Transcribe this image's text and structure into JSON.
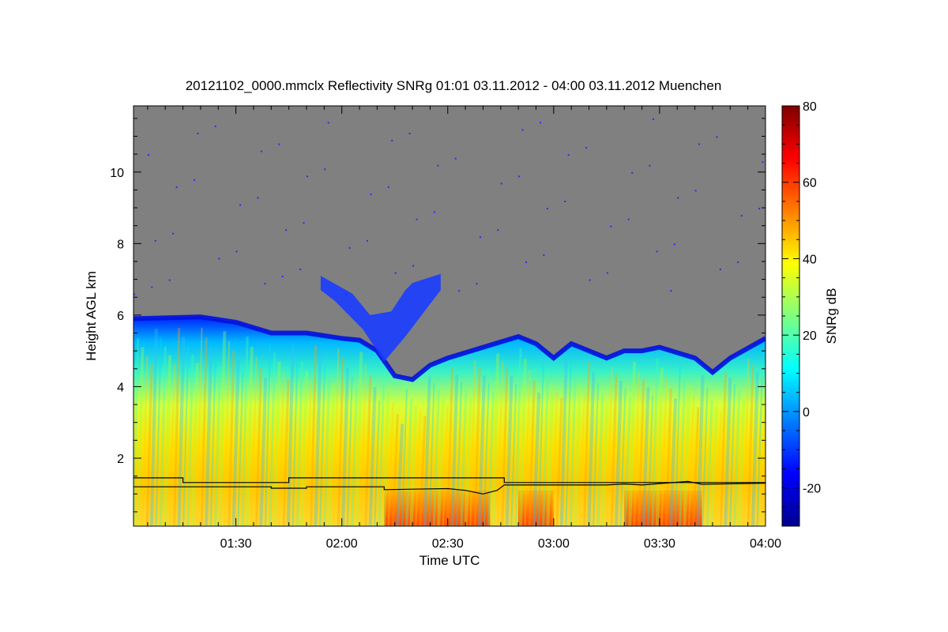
{
  "chart_data": {
    "type": "heatmap",
    "title": "20121102_0000.mmclx Reflectivity SNRg   01:01 03.11.2012 - 04:00 03.11.2012 Muenchen",
    "xlabel": "Time UTC",
    "ylabel": "Height AGL km",
    "xlim": [
      "01:01",
      "04:00"
    ],
    "xticks": [
      "01:30",
      "02:00",
      "02:30",
      "03:00",
      "03:30",
      "04:00"
    ],
    "ylim": [
      0.1,
      11.85
    ],
    "yticks": [
      2,
      4,
      6,
      8,
      10
    ],
    "colorbar": {
      "label": "SNRg dB",
      "range": [
        -30,
        80
      ],
      "ticks": [
        -20,
        0,
        20,
        40,
        60,
        80
      ],
      "colormap": "jet",
      "colors": [
        "#00008f",
        "#0000ff",
        "#007fff",
        "#00ffff",
        "#7fff7f",
        "#ffff00",
        "#ff7f00",
        "#ff0000",
        "#7f0000"
      ]
    },
    "no_signal_color": "#808080",
    "lines_color": "#000000",
    "cloud_top_km": [
      {
        "time": "01:01",
        "height": 5.9
      },
      {
        "time": "01:20",
        "height": 5.95
      },
      {
        "time": "01:30",
        "height": 5.8
      },
      {
        "time": "01:40",
        "height": 5.5
      },
      {
        "time": "01:50",
        "height": 5.5
      },
      {
        "time": "02:00",
        "height": 5.35
      },
      {
        "time": "02:05",
        "height": 5.3
      },
      {
        "time": "02:10",
        "height": 5.0
      },
      {
        "time": "02:15",
        "height": 4.3
      },
      {
        "time": "02:20",
        "height": 4.2
      },
      {
        "time": "02:25",
        "height": 4.6
      },
      {
        "time": "02:30",
        "height": 4.8
      },
      {
        "time": "02:40",
        "height": 5.1
      },
      {
        "time": "02:50",
        "height": 5.4
      },
      {
        "time": "02:55",
        "height": 5.2
      },
      {
        "time": "03:00",
        "height": 4.8
      },
      {
        "time": "03:05",
        "height": 5.2
      },
      {
        "time": "03:10",
        "height": 5.0
      },
      {
        "time": "03:15",
        "height": 4.8
      },
      {
        "time": "03:20",
        "height": 5.0
      },
      {
        "time": "03:25",
        "height": 5.0
      },
      {
        "time": "03:30",
        "height": 5.1
      },
      {
        "time": "03:40",
        "height": 4.8
      },
      {
        "time": "03:45",
        "height": 4.4
      },
      {
        "time": "03:50",
        "height": 4.8
      },
      {
        "time": "04:00",
        "height": 5.35
      }
    ],
    "upper_cloud_patch_km": [
      {
        "time": "01:54",
        "height": 7.1
      },
      {
        "time": "02:03",
        "height": 6.6
      },
      {
        "time": "02:08",
        "height": 6.0
      },
      {
        "time": "02:14",
        "height": 6.1
      },
      {
        "time": "02:18",
        "height": 6.7
      },
      {
        "time": "02:20",
        "height": 6.9
      },
      {
        "time": "02:28",
        "height": 7.15
      },
      {
        "time": "02:28",
        "height": 6.7
      },
      {
        "time": "02:18",
        "height": 5.4
      },
      {
        "time": "02:12",
        "height": 4.7
      },
      {
        "time": "02:06",
        "height": 5.6
      },
      {
        "time": "01:58",
        "height": 6.4
      },
      {
        "time": "01:54",
        "height": 6.7
      }
    ],
    "line_upper_km": [
      {
        "time": "01:01",
        "height": 1.45
      },
      {
        "time": "01:15",
        "height": 1.45
      },
      {
        "time": "01:15",
        "height": 1.32
      },
      {
        "time": "01:45",
        "height": 1.32
      },
      {
        "time": "01:45",
        "height": 1.45
      },
      {
        "time": "02:46",
        "height": 1.45
      },
      {
        "time": "02:46",
        "height": 1.32
      },
      {
        "time": "04:00",
        "height": 1.32
      }
    ],
    "line_lower_km": [
      {
        "time": "01:01",
        "height": 1.2
      },
      {
        "time": "01:40",
        "height": 1.2
      },
      {
        "time": "01:40",
        "height": 1.16
      },
      {
        "time": "01:50",
        "height": 1.16
      },
      {
        "time": "01:50",
        "height": 1.2
      },
      {
        "time": "02:12",
        "height": 1.2
      },
      {
        "time": "02:12",
        "height": 1.12
      },
      {
        "time": "02:30",
        "height": 1.15
      },
      {
        "time": "02:35",
        "height": 1.1
      },
      {
        "time": "02:40",
        "height": 1.0
      },
      {
        "time": "02:44",
        "height": 1.1
      },
      {
        "time": "02:46",
        "height": 1.25
      },
      {
        "time": "03:15",
        "height": 1.25
      },
      {
        "time": "03:20",
        "height": 1.28
      },
      {
        "time": "03:25",
        "height": 1.25
      },
      {
        "time": "03:38",
        "height": 1.35
      },
      {
        "time": "03:42",
        "height": 1.27
      },
      {
        "time": "04:00",
        "height": 1.3
      }
    ]
  }
}
